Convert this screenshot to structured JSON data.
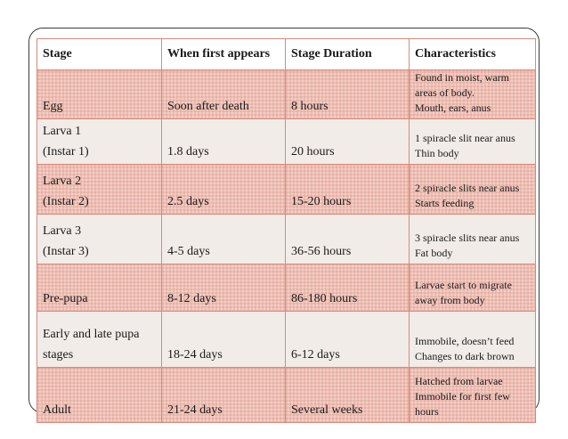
{
  "table": {
    "headers": [
      "Stage",
      "When first appears",
      "Stage Duration",
      "Characteristics"
    ],
    "rows": [
      {
        "stage": [
          "Egg"
        ],
        "appears": "Soon after death",
        "duration": "8 hours",
        "characteristics": [
          "Found in moist, warm",
          "areas of body.",
          "Mouth, ears, anus"
        ]
      },
      {
        "stage": [
          "Larva 1",
          "(Instar 1)"
        ],
        "appears": "1.8 days",
        "duration": "20 hours",
        "characteristics": [
          "1 spiracle slit near anus",
          "Thin body"
        ]
      },
      {
        "stage": [
          "Larva 2",
          "(Instar 2)"
        ],
        "appears": "2.5 days",
        "duration": "15-20 hours",
        "characteristics": [
          "2 spiracle slits near anus",
          "Starts feeding"
        ]
      },
      {
        "stage": [
          "Larva 3",
          "(Instar 3)"
        ],
        "appears": "4-5 days",
        "duration": "36-56 hours",
        "characteristics": [
          "3 spiracle slits near anus",
          "Fat body"
        ]
      },
      {
        "stage": [
          "Pre-pupa"
        ],
        "appears": "8-12 days",
        "duration": "86-180 hours",
        "characteristics": [
          "Larvae start to migrate",
          "away from body"
        ]
      },
      {
        "stage": [
          "Early and late pupa",
          "stages"
        ],
        "appears": "18-24 days",
        "duration": "6-12 days",
        "characteristics": [
          "Immobile, doesn’t feed",
          "Changes to dark brown"
        ]
      },
      {
        "stage": [
          "Adult"
        ],
        "appears": "21-24 days",
        "duration": "Several weeks",
        "characteristics": [
          "Hatched from larvae",
          "Immobile for first few",
          "hours"
        ]
      }
    ]
  }
}
